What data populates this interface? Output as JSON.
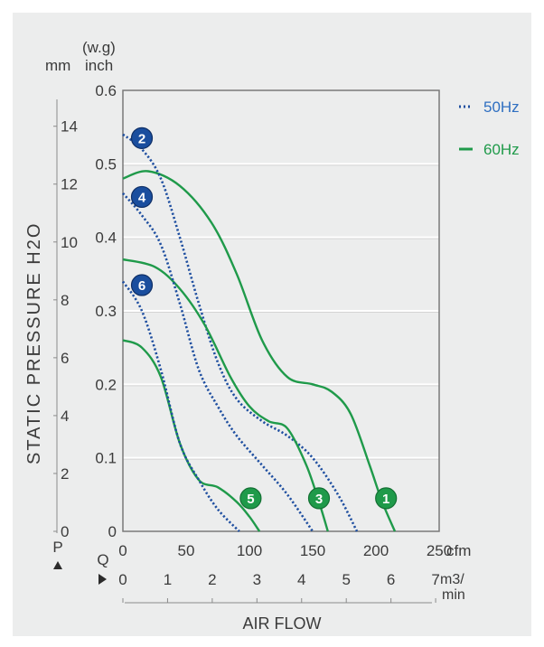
{
  "chart_data": {
    "type": "line",
    "y_left_units": {
      "top": "(w.g)",
      "mm": "mm",
      "inch": "inch"
    },
    "ylabel": "STATIC PRESSURE H2O",
    "xlabel": "AIR FLOW",
    "x_units": {
      "cfm": "cfm",
      "m3": "m3/",
      "min": "min"
    },
    "axis_letters": {
      "p": "P",
      "q": "Q"
    },
    "inch_ticks": [
      "0",
      "0.1",
      "0.2",
      "0.3",
      "0.4",
      "0.5",
      "0.6"
    ],
    "mm_ticks": [
      "0",
      "2",
      "4",
      "6",
      "8",
      "10",
      "12",
      "14"
    ],
    "cfm_ticks": [
      "0",
      "50",
      "100",
      "150",
      "200",
      "250"
    ],
    "m3_ticks": [
      "0",
      "1",
      "2",
      "3",
      "4",
      "5",
      "6",
      "7"
    ],
    "ylim_inch": [
      0,
      0.6
    ],
    "xlim_cfm": [
      0,
      250
    ],
    "grid": true,
    "legend_placement": "top-right",
    "legend": [
      {
        "label": "50Hz",
        "style": "dotted",
        "color": "#1f4fa0"
      },
      {
        "label": "60Hz",
        "style": "solid",
        "color": "#1f9a4a"
      }
    ],
    "series": [
      {
        "name": "1",
        "freq": "60Hz",
        "color": "#1f9a4a",
        "style": "solid",
        "x": [
          0,
          20,
          45,
          70,
          90,
          110,
          130,
          150,
          165,
          180,
          195,
          205,
          215
        ],
        "y": [
          0.48,
          0.49,
          0.47,
          0.42,
          0.35,
          0.26,
          0.21,
          0.2,
          0.19,
          0.16,
          0.09,
          0.04,
          0.0
        ]
      },
      {
        "name": "2",
        "freq": "50Hz",
        "color": "#1f4fa0",
        "style": "dotted",
        "x": [
          0,
          15,
          30,
          45,
          60,
          75,
          90,
          110,
          130,
          150,
          170,
          185
        ],
        "y": [
          0.54,
          0.52,
          0.48,
          0.4,
          0.31,
          0.23,
          0.18,
          0.15,
          0.13,
          0.1,
          0.05,
          0.0
        ]
      },
      {
        "name": "3",
        "freq": "60Hz",
        "color": "#1f9a4a",
        "style": "solid",
        "x": [
          0,
          25,
          45,
          65,
          85,
          100,
          115,
          130,
          145,
          155,
          162
        ],
        "y": [
          0.37,
          0.36,
          0.33,
          0.28,
          0.21,
          0.17,
          0.15,
          0.14,
          0.09,
          0.04,
          0.0
        ]
      },
      {
        "name": "4",
        "freq": "50Hz",
        "color": "#1f4fa0",
        "style": "dotted",
        "x": [
          0,
          15,
          30,
          45,
          60,
          75,
          90,
          110,
          130,
          150
        ],
        "y": [
          0.46,
          0.43,
          0.39,
          0.31,
          0.22,
          0.17,
          0.13,
          0.09,
          0.05,
          0.0
        ]
      },
      {
        "name": "5",
        "freq": "60Hz",
        "color": "#1f9a4a",
        "style": "solid",
        "x": [
          0,
          15,
          30,
          45,
          60,
          75,
          90,
          100,
          108
        ],
        "y": [
          0.26,
          0.25,
          0.21,
          0.12,
          0.07,
          0.06,
          0.04,
          0.02,
          0.0
        ]
      },
      {
        "name": "6",
        "freq": "50Hz",
        "color": "#1f4fa0",
        "style": "dotted",
        "x": [
          0,
          15,
          30,
          45,
          60,
          75,
          92
        ],
        "y": [
          0.34,
          0.3,
          0.22,
          0.12,
          0.07,
          0.03,
          0.0
        ]
      }
    ]
  }
}
